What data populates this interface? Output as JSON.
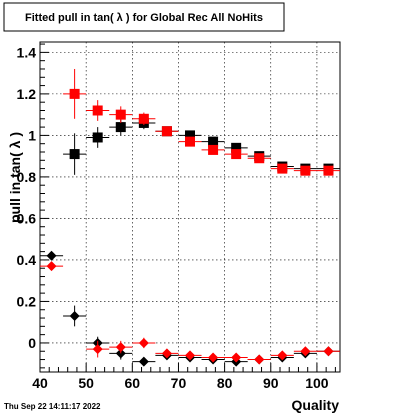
{
  "chart_data": {
    "type": "scatter",
    "title": "Fitted pull in tan( λ ) for Global Rec All NoHits",
    "xlabel": "Quality",
    "ylabel": "pull in tan( λ )",
    "xlim": [
      40,
      105
    ],
    "ylim": [
      -0.14,
      1.45
    ],
    "x_ticks": [
      40,
      50,
      60,
      70,
      80,
      90,
      100
    ],
    "y_ticks": [
      0,
      0.2,
      0.4,
      0.6,
      0.8,
      1,
      1.2,
      1.4
    ],
    "y_tick_labels": [
      "0",
      "0.2",
      "0.4",
      "0.6",
      "0.8",
      "1",
      "1.2",
      "1.4"
    ],
    "grid": true,
    "timestamp": "Thu Sep 22 14:11:17 2022",
    "series": [
      {
        "color": "#000000",
        "marker": "square",
        "x": [
          47.5,
          52.5,
          57.5,
          62.5,
          67.5,
          72.5,
          77.5,
          82.5,
          87.5,
          92.5,
          97.5,
          102.5
        ],
        "y": [
          0.91,
          0.99,
          1.04,
          1.06,
          1.02,
          1.0,
          0.97,
          0.94,
          0.9,
          0.85,
          0.84,
          0.84
        ],
        "yerr": [
          0.1,
          0.05,
          0.04,
          0.03,
          0.02,
          0.015,
          0.015,
          0.012,
          0.012,
          0.012,
          0.012,
          0.012
        ],
        "xerr": 2.5
      },
      {
        "color": "#ff0000",
        "marker": "square",
        "x": [
          47.5,
          52.5,
          57.5,
          62.5,
          67.5,
          72.5,
          77.5,
          82.5,
          87.5,
          92.5,
          97.5,
          102.5
        ],
        "y": [
          1.2,
          1.12,
          1.1,
          1.08,
          1.02,
          0.97,
          0.93,
          0.91,
          0.89,
          0.84,
          0.83,
          0.83
        ],
        "yerr": [
          0.12,
          0.05,
          0.04,
          0.03,
          0.02,
          0.015,
          0.015,
          0.012,
          0.012,
          0.012,
          0.012,
          0.012
        ],
        "xerr": 2.5
      },
      {
        "color": "#000000",
        "marker": "diamond",
        "x": [
          42.5,
          47.5,
          52.5,
          57.5,
          62.5,
          67.5,
          72.5,
          77.5,
          82.5,
          87.5,
          92.5,
          97.5,
          102.5
        ],
        "y": [
          0.42,
          0.13,
          0.0,
          -0.05,
          -0.09,
          -0.06,
          -0.07,
          -0.08,
          -0.09,
          -0.08,
          -0.07,
          -0.05,
          -0.04
        ],
        "yerr": [
          0.02,
          0.05,
          0.03,
          0.03,
          0.02,
          0.015,
          0.012,
          0.012,
          0.01,
          0.01,
          0.01,
          0.01,
          0.01
        ],
        "xerr": 2.5
      },
      {
        "color": "#ff0000",
        "marker": "diamond",
        "x": [
          42.5,
          52.5,
          57.5,
          62.5,
          67.5,
          72.5,
          77.5,
          82.5,
          87.5,
          92.5,
          97.5,
          102.5
        ],
        "y": [
          0.37,
          -0.03,
          -0.02,
          0.0,
          -0.05,
          -0.06,
          -0.07,
          -0.07,
          -0.08,
          -0.06,
          -0.04,
          -0.04
        ],
        "yerr": [
          0.02,
          0.04,
          0.03,
          0.025,
          0.02,
          0.015,
          0.012,
          0.012,
          0.01,
          0.01,
          0.01,
          0.01
        ],
        "xerr": 2.5
      }
    ]
  }
}
